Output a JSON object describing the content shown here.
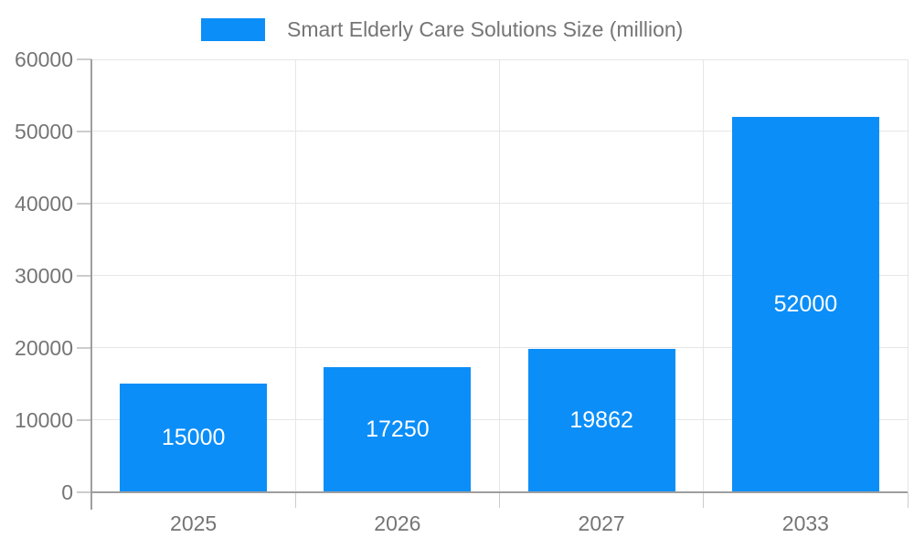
{
  "chart_data": {
    "type": "bar",
    "categories": [
      "2025",
      "2026",
      "2027",
      "2033"
    ],
    "values": [
      15000,
      17250,
      19862,
      52000
    ],
    "bar_labels": [
      "15000",
      "17250",
      "19862",
      "52000"
    ],
    "series": [
      {
        "name": "Smart Elderly Care Solutions Size (million)",
        "values": [
          15000,
          17250,
          19862,
          52000
        ]
      }
    ],
    "title": "",
    "xlabel": "",
    "ylabel": "",
    "legend": "Smart Elderly Care Solutions Size (million)",
    "legend_position": "top",
    "ylim": [
      0,
      60000
    ],
    "yticks": [
      0,
      10000,
      20000,
      30000,
      40000,
      50000,
      60000
    ],
    "grid": true,
    "colors": {
      "bar": "#0b8ef8",
      "axis_text": "#757575",
      "bar_label_text": "#ffffff",
      "gridline": "#e6e6e6",
      "axis_line": "#9e9e9e"
    }
  }
}
